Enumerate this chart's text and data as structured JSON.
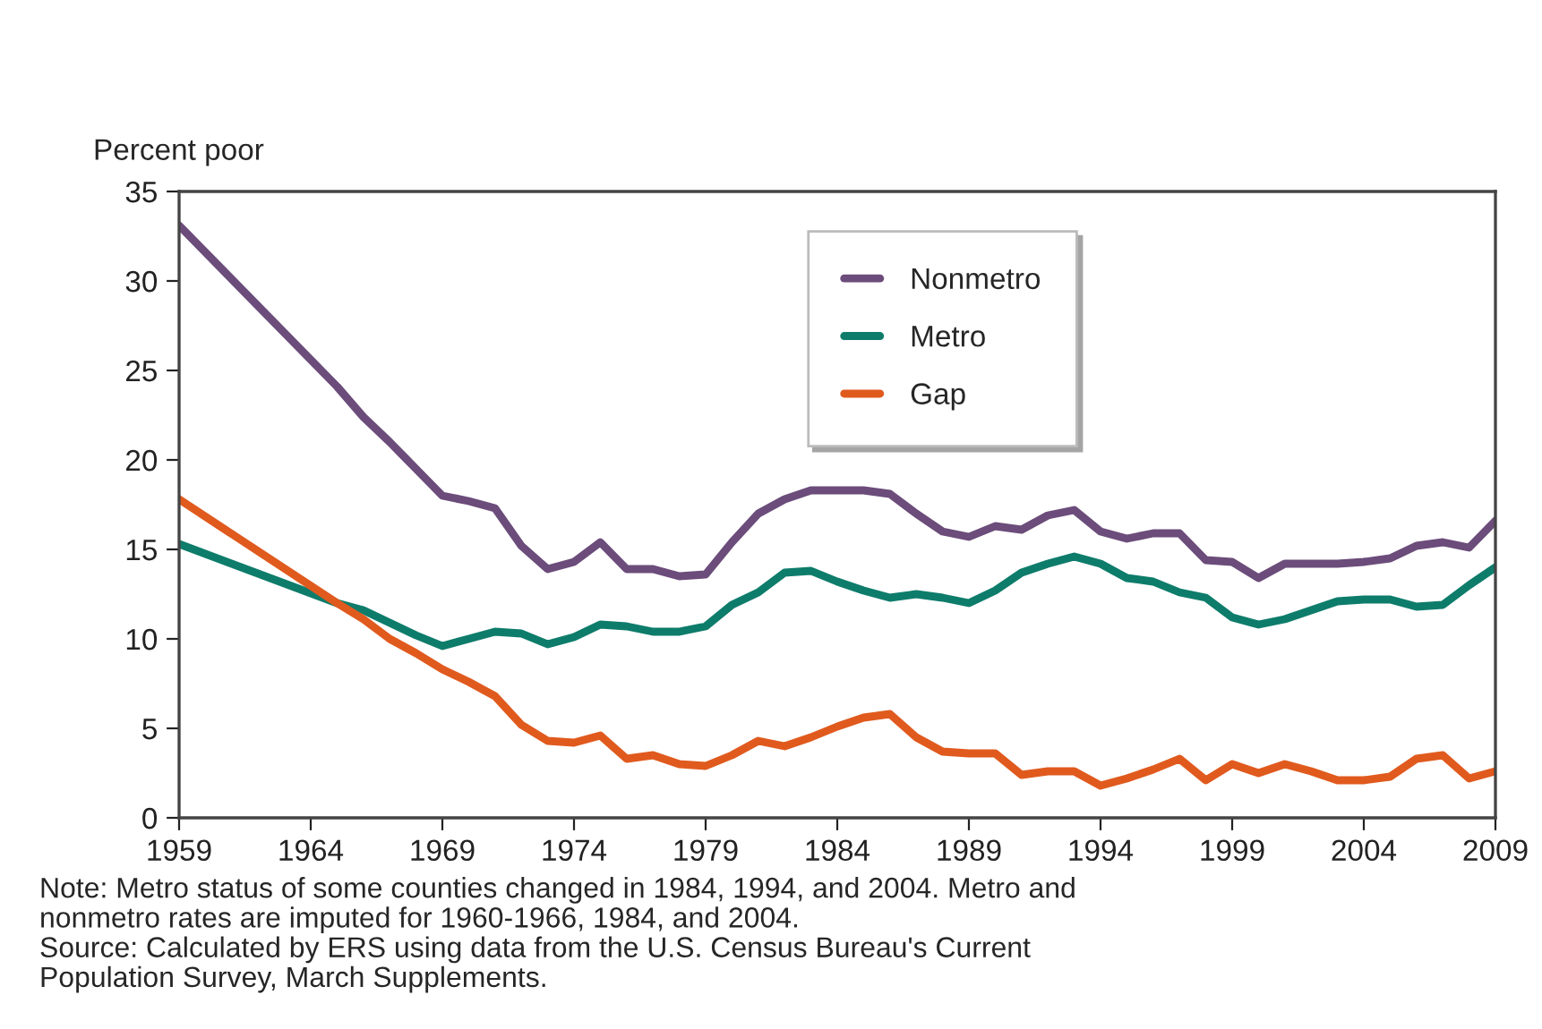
{
  "chart_data": {
    "type": "line",
    "ylabel": "Percent poor",
    "x": [
      1959,
      1965,
      1966,
      1967,
      1968,
      1969,
      1970,
      1971,
      1972,
      1973,
      1974,
      1975,
      1976,
      1977,
      1978,
      1979,
      1980,
      1981,
      1982,
      1983,
      1984,
      1985,
      1986,
      1987,
      1988,
      1989,
      1990,
      1991,
      1992,
      1993,
      1994,
      1995,
      1996,
      1997,
      1998,
      1999,
      2000,
      2001,
      2002,
      2003,
      2004,
      2005,
      2006,
      2007,
      2008,
      2009
    ],
    "series": [
      {
        "name": "Nonmetro",
        "color": "#6b4c7a",
        "values": [
          33.1,
          24.1,
          22.4,
          21.0,
          19.5,
          18.0,
          17.7,
          17.3,
          15.2,
          13.9,
          14.3,
          15.4,
          13.9,
          13.9,
          13.5,
          13.6,
          15.4,
          17.0,
          17.8,
          18.3,
          18.3,
          18.3,
          18.1,
          17.0,
          16.0,
          15.7,
          16.3,
          16.1,
          16.9,
          17.2,
          16.0,
          15.6,
          15.9,
          15.9,
          14.4,
          14.3,
          13.4,
          14.2,
          14.2,
          14.2,
          14.3,
          14.5,
          15.2,
          15.4,
          15.1,
          16.6
        ]
      },
      {
        "name": "Metro",
        "color": "#0e7c6b",
        "values": [
          15.3,
          12.0,
          11.6,
          10.9,
          10.2,
          9.6,
          10.0,
          10.4,
          10.3,
          9.7,
          10.1,
          10.8,
          10.7,
          10.4,
          10.4,
          10.7,
          11.9,
          12.6,
          13.7,
          13.8,
          13.2,
          12.7,
          12.3,
          12.5,
          12.3,
          12.0,
          12.7,
          13.7,
          14.2,
          14.6,
          14.2,
          13.4,
          13.2,
          12.6,
          12.3,
          11.2,
          10.8,
          11.1,
          11.6,
          12.1,
          12.2,
          12.2,
          11.8,
          11.9,
          13.0,
          14.0
        ]
      },
      {
        "name": "Gap",
        "color": "#e05a1e",
        "values": [
          17.8,
          12.0,
          11.1,
          10.0,
          9.2,
          8.3,
          7.6,
          6.8,
          5.2,
          4.3,
          4.2,
          4.6,
          3.3,
          3.5,
          3.0,
          2.9,
          3.5,
          4.3,
          4.0,
          4.5,
          5.1,
          5.6,
          5.8,
          4.5,
          3.7,
          3.6,
          3.6,
          2.4,
          2.6,
          2.6,
          1.8,
          2.2,
          2.7,
          3.3,
          2.1,
          3.0,
          2.5,
          3.0,
          2.6,
          2.1,
          2.1,
          2.3,
          3.3,
          3.5,
          2.2,
          2.6
        ]
      }
    ],
    "xlim": [
      1959,
      2009
    ],
    "xticks": [
      1959,
      1964,
      1969,
      1974,
      1979,
      1984,
      1989,
      1994,
      1999,
      2004,
      2009
    ],
    "ylim": [
      0,
      35
    ],
    "yticks": [
      0,
      5,
      10,
      15,
      20,
      25,
      30,
      35
    ],
    "grid": false,
    "legend": "top",
    "marker": "none",
    "line_style": "solid",
    "annotations": [
      "Note: Metro status of some counties changed in 1984, 1994, and 2004. Metro and\nnonmetro rates are imputed for 1960-1966, 1984, and 2004.\nSource: Calculated by ERS using data from the U.S. Census Bureau's Current\nPopulation Survey, March Supplements."
    ]
  }
}
